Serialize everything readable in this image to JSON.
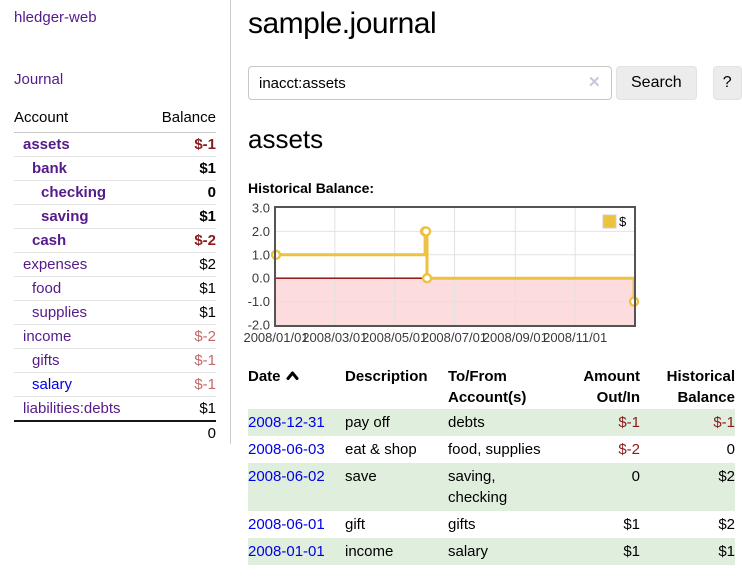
{
  "brand": "hledger-web",
  "nav": {
    "journal": "Journal"
  },
  "sidebar": {
    "headers": {
      "account": "Account",
      "balance": "Balance"
    },
    "accounts": [
      {
        "name": "assets",
        "level": 1,
        "balance": "$-1",
        "bold": true,
        "neg": "strong"
      },
      {
        "name": "bank",
        "level": 2,
        "balance": "$1",
        "bold": true
      },
      {
        "name": "checking",
        "level": 3,
        "balance": "0",
        "bold": true
      },
      {
        "name": "saving",
        "level": 3,
        "balance": "$1",
        "bold": true
      },
      {
        "name": "cash",
        "level": 2,
        "balance": "$-2",
        "bold": true,
        "neg": "strong"
      },
      {
        "name": "expenses",
        "level": 1,
        "balance": "$2"
      },
      {
        "name": "food",
        "level": 2,
        "balance": "$1"
      },
      {
        "name": "supplies",
        "level": 2,
        "balance": "$1"
      },
      {
        "name": "income",
        "level": 1,
        "balance": "$-2",
        "neg": "soft"
      },
      {
        "name": "gifts",
        "level": 2,
        "balance": "$-1",
        "neg": "soft"
      },
      {
        "name": "salary",
        "level": 2,
        "balance": "$-1",
        "neg": "soft",
        "link": "blue"
      },
      {
        "name": "liabilities:debts",
        "level": 1,
        "balance": "$1"
      }
    ],
    "total": "0"
  },
  "main": {
    "title": "sample.journal",
    "search": {
      "value": "inacct:assets",
      "clear": "✕",
      "search_label": "Search",
      "help_label": "?"
    },
    "account_title": "assets",
    "chart_label": "Historical Balance:"
  },
  "chart_data": {
    "type": "line",
    "step": true,
    "title": "Historical Balance of assets",
    "series": [
      {
        "name": "$",
        "points": [
          [
            "2008-01-01",
            1
          ],
          [
            "2008-06-01",
            2
          ],
          [
            "2008-06-02",
            2
          ],
          [
            "2008-06-03",
            0
          ],
          [
            "2008-12-31",
            -1
          ]
        ]
      }
    ],
    "x_range": [
      "2008-01-01",
      "2008-12-31"
    ],
    "x_ticks": [
      "2008/01/01",
      "2008/03/01",
      "2008/05/01",
      "2008/07/01",
      "2008/09/01",
      "2008/11/01"
    ],
    "y_ticks": [
      "3.0",
      "2.0",
      "1.0",
      "0.0",
      "-1.0",
      "-2.0"
    ],
    "ylim": [
      -2,
      3
    ],
    "grid": true,
    "negative_region_below": 0,
    "legend": {
      "label": "$",
      "position": "top-right"
    },
    "colors": {
      "line": "#edc240",
      "marker_fill": "#ffffff",
      "negative_region": "#fcdcdc",
      "zero_line": "#8b0000",
      "grid": "#e2e2e2",
      "border": "#545454",
      "tick_text": "#3a3a3a"
    }
  },
  "register": {
    "headers": [
      "Date",
      "Description",
      "To/From Account(s)",
      "Amount Out/In",
      "Historical Balance"
    ],
    "sort": {
      "column": "Date",
      "direction": "up"
    },
    "stripe_color": "#e0eede",
    "rows": [
      {
        "date": "2008-12-31",
        "description": "pay off",
        "accounts": "debts",
        "amount": "$-1",
        "balance": "$-1",
        "amount_neg": true,
        "balance_neg": true
      },
      {
        "date": "2008-06-03",
        "description": "eat & shop",
        "accounts": "food, supplies",
        "amount": "$-2",
        "balance": "0",
        "amount_neg": true,
        "balance_neg": false
      },
      {
        "date": "2008-06-02",
        "description": "save",
        "accounts": "saving, checking",
        "amount": "0",
        "balance": "$2",
        "amount_neg": false,
        "balance_neg": false
      },
      {
        "date": "2008-06-01",
        "description": "gift",
        "accounts": "gifts",
        "amount": "$1",
        "balance": "$2",
        "amount_neg": false,
        "balance_neg": false
      },
      {
        "date": "2008-01-01",
        "description": "income",
        "accounts": "salary",
        "amount": "$1",
        "balance": "$1",
        "amount_neg": false,
        "balance_neg": false
      }
    ]
  },
  "colors": {
    "link_purple": "#551a8b",
    "link_blue": "#0000e8",
    "negative_strong": "#8b1a1a",
    "negative_soft": "#c06a6a"
  }
}
